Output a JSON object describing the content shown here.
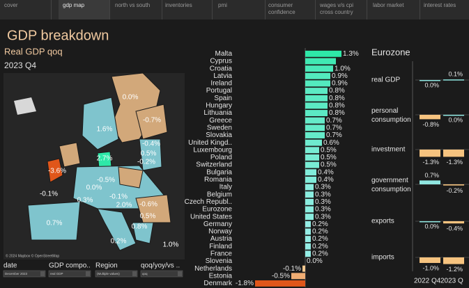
{
  "tabs": [
    "cover",
    "gdp map",
    "north vs south",
    "inventories",
    "pmi",
    "consumer confidence",
    "wages v/s cpi cross country",
    "labor market",
    "interest rates"
  ],
  "active_tab": 1,
  "header": {
    "title": "GDP breakdown",
    "subtitle": "Real GDP qoq",
    "period": "2023 Q4"
  },
  "map": {
    "labels": [
      "0.0%",
      "-0.7%",
      "1.6%",
      "-0.4%",
      "0.5%",
      "2.7%",
      "-0.2%",
      "-3.6%",
      "-0.5%",
      "0.0%",
      "-0.1%",
      "0.3%",
      "-0.1%",
      "2.0%",
      "-0.6%",
      "0.5%",
      "0.7%",
      "0.8%",
      "0.2%",
      "1.0%"
    ],
    "attribution": "© 2024 Mapbox © OpenStreetMap"
  },
  "bar_chart": {
    "type": "bar",
    "categories": [
      "Malta",
      "Cyprus",
      "Croatia",
      "Latvia",
      "Ireland",
      "Portugal",
      "Spain",
      "Hungary",
      "Lithuania",
      "Greece",
      "Sweden",
      "Slovakia",
      "United Kingd..",
      "Luxembourg",
      "Poland",
      "Switzerland",
      "Bulgaria",
      "Romania",
      "Italy",
      "Belgium",
      "Czech Republ..",
      "Eurozone",
      "United States",
      "Germany",
      "Norway",
      "Austria",
      "Finland",
      "France",
      "Slovenia",
      "Netherlands",
      "Estonia",
      "Denmark"
    ],
    "values": [
      1.3,
      1.1,
      1.0,
      0.9,
      0.9,
      0.8,
      0.8,
      0.8,
      0.8,
      0.7,
      0.7,
      0.7,
      0.6,
      0.5,
      0.5,
      0.5,
      0.4,
      0.4,
      0.3,
      0.3,
      0.3,
      0.3,
      0.3,
      0.2,
      0.2,
      0.2,
      0.2,
      0.2,
      0.0,
      -0.1,
      -0.5,
      -1.8
    ],
    "value_labels": [
      "1.3%",
      null,
      "1.0%",
      "0.9%",
      "0.9%",
      "0.8%",
      "0.8%",
      "0.8%",
      "0.8%",
      "0.7%",
      "0.7%",
      "0.7%",
      "0.6%",
      "0.5%",
      "0.5%",
      "0.5%",
      "0.4%",
      "0.4%",
      "0.3%",
      "0.3%",
      "0.3%",
      "0.3%",
      "0.3%",
      "0.2%",
      "0.2%",
      "0.2%",
      "0.2%",
      "0.2%",
      "0.0%",
      "-0.1%",
      "-0.5%",
      "-1.8%"
    ],
    "colors": {
      "high": "#2ee8a8",
      "low": "#a6eef0",
      "neg_small": "#f6cf95",
      "neg_large": "#e0561a"
    }
  },
  "eurozone": {
    "title": "Eurozone",
    "periods": [
      "2022 Q4",
      "2023 Q"
    ],
    "rows": [
      {
        "label": "real GDP",
        "values": [
          0.0,
          0.1
        ],
        "value_labels": [
          "0.0%",
          "0.1%"
        ]
      },
      {
        "label": "personal consumption",
        "values": [
          -0.8,
          0.0
        ],
        "value_labels": [
          "-0.8%",
          "0.0%"
        ]
      },
      {
        "label": "investment",
        "values": [
          -1.3,
          -1.3
        ],
        "value_labels": [
          "-1.3%",
          "-1.3%"
        ]
      },
      {
        "label": "government consumption",
        "values": [
          0.7,
          -0.2
        ],
        "value_labels": [
          "0.7%",
          "-0.2%"
        ]
      },
      {
        "label": "exports",
        "values": [
          0.0,
          -0.4
        ],
        "value_labels": [
          "0.0%",
          "-0.4%"
        ]
      },
      {
        "label": "imports",
        "values": [
          -1.0,
          -1.2
        ],
        "value_labels": [
          "-1.0%",
          "-1.2%"
        ]
      }
    ]
  },
  "filters": [
    {
      "label": "date",
      "value": "December 2023"
    },
    {
      "label": "GDP compo..",
      "value": "real GDP"
    },
    {
      "label": "Region",
      "value": "(Multiple values)"
    },
    {
      "label": "qoq/yoy/vs ..",
      "value": "qoq"
    }
  ]
}
